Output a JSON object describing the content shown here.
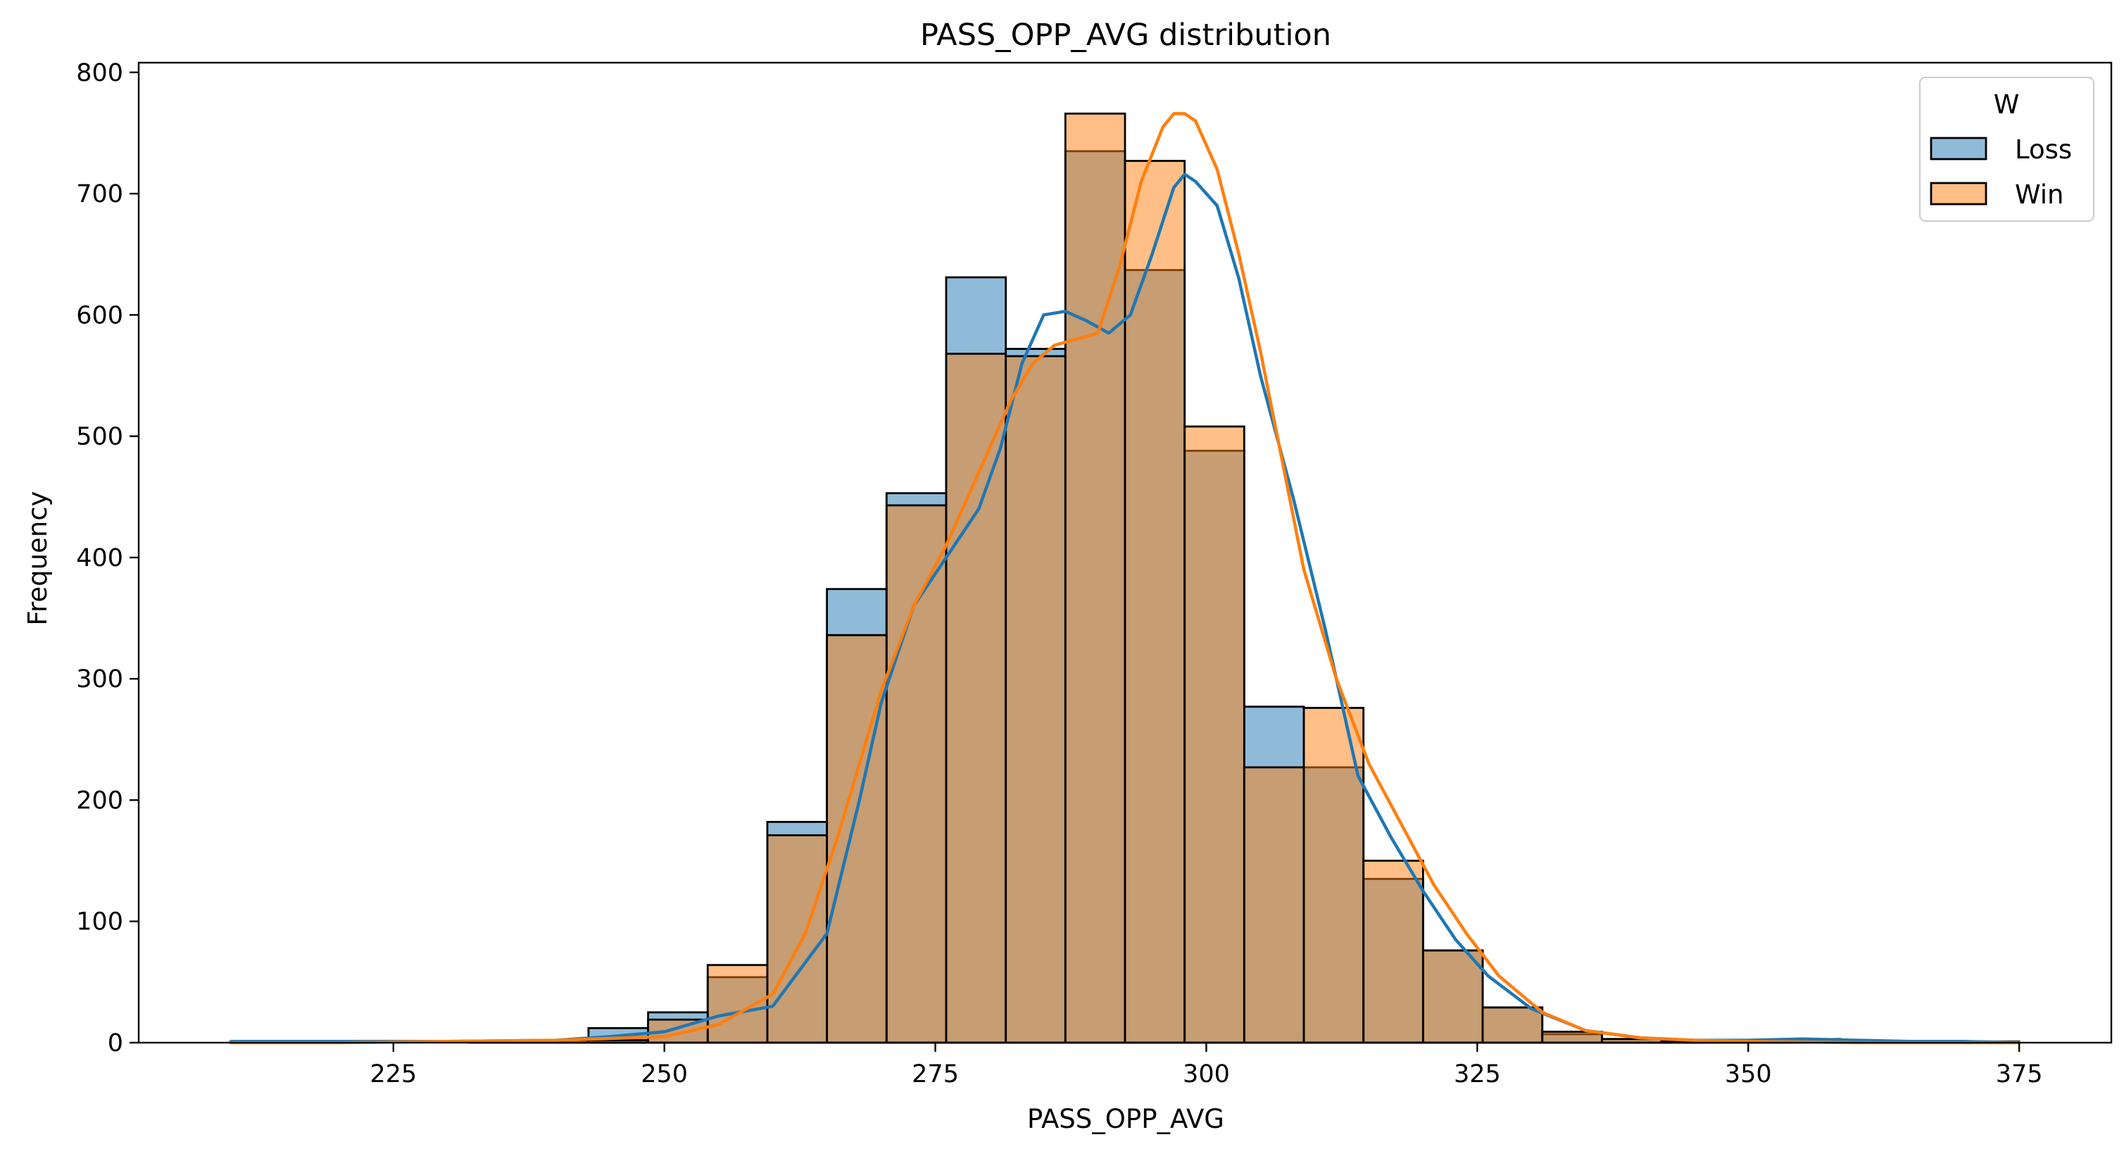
{
  "chart_data": {
    "type": "bar",
    "title": "PASS_OPP_AVG distribution",
    "xlabel": "PASS_OPP_AVG",
    "ylabel": "Frequency",
    "xlim": [
      201.5,
      383.5
    ],
    "ylim": [
      0,
      808
    ],
    "xticks": [
      225,
      250,
      275,
      300,
      325,
      350,
      375
    ],
    "yticks": [
      0,
      100,
      200,
      300,
      400,
      500,
      600,
      700,
      800
    ],
    "bins": {
      "x_start": 210.0,
      "x_end": 375.0,
      "edges": [
        210.0,
        215.5,
        221.0,
        226.5,
        232.0,
        237.5,
        243.0,
        248.5,
        254.0,
        259.5,
        265.0,
        270.5,
        276.0,
        281.5,
        287.0,
        292.5,
        298.0,
        303.5,
        309.0,
        314.5,
        320.0,
        325.5,
        331.0,
        336.5,
        342.0,
        347.5,
        353.0,
        358.5,
        364.0,
        369.5,
        375.0
      ]
    },
    "bar_alpha": 0.5,
    "legend": {
      "title": "W",
      "placement": "top-right"
    },
    "series": [
      {
        "name": "Loss",
        "color": "#1f77b4",
        "values": [
          1,
          0,
          0,
          0,
          1,
          2,
          12,
          25,
          54,
          182,
          374,
          453,
          631,
          572,
          735,
          637,
          488,
          277,
          227,
          135,
          76,
          29,
          7,
          3,
          1,
          2,
          3,
          1,
          0,
          1
        ],
        "kde_x": [
          210,
          220,
          230,
          240,
          245,
          250,
          255,
          260,
          265,
          268,
          270,
          273,
          276,
          279,
          281,
          283,
          285,
          287,
          289,
          291,
          293,
          295,
          297,
          298,
          299,
          301,
          303,
          305,
          308,
          311,
          314,
          317,
          320,
          323,
          326,
          330,
          335,
          340,
          345,
          350,
          355,
          360,
          365,
          370,
          375
        ],
        "kde_y": [
          1,
          1,
          1,
          2,
          5,
          9,
          22,
          30,
          90,
          200,
          280,
          360,
          400,
          440,
          490,
          560,
          600,
          603,
          595,
          585,
          600,
          650,
          705,
          716,
          710,
          690,
          630,
          550,
          450,
          340,
          220,
          170,
          125,
          85,
          55,
          28,
          10,
          4,
          2,
          2,
          3,
          2,
          1,
          1,
          0
        ]
      },
      {
        "name": "Win",
        "color": "#ff7f0e",
        "values": [
          0,
          0,
          0,
          0,
          0,
          0,
          2,
          19,
          64,
          171,
          336,
          443,
          568,
          566,
          766,
          727,
          508,
          227,
          276,
          150,
          76,
          29,
          9,
          3,
          1,
          0,
          0,
          0,
          0,
          0
        ],
        "kde_x": [
          210,
          220,
          230,
          240,
          250,
          255,
          260,
          263,
          266,
          270,
          273,
          276,
          279,
          282,
          284,
          286,
          288,
          290,
          292,
          294,
          296,
          297,
          298,
          299,
          301,
          303,
          305,
          307,
          309,
          312,
          315,
          318,
          321,
          324,
          327,
          331,
          335,
          340,
          345,
          350,
          360,
          375
        ],
        "kde_y": [
          0,
          0,
          1,
          2,
          5,
          15,
          40,
          90,
          170,
          290,
          360,
          410,
          470,
          530,
          560,
          575,
          580,
          585,
          640,
          710,
          755,
          766,
          766,
          760,
          720,
          650,
          570,
          480,
          390,
          300,
          230,
          180,
          130,
          90,
          55,
          25,
          10,
          4,
          2,
          1,
          0,
          0
        ]
      }
    ]
  }
}
